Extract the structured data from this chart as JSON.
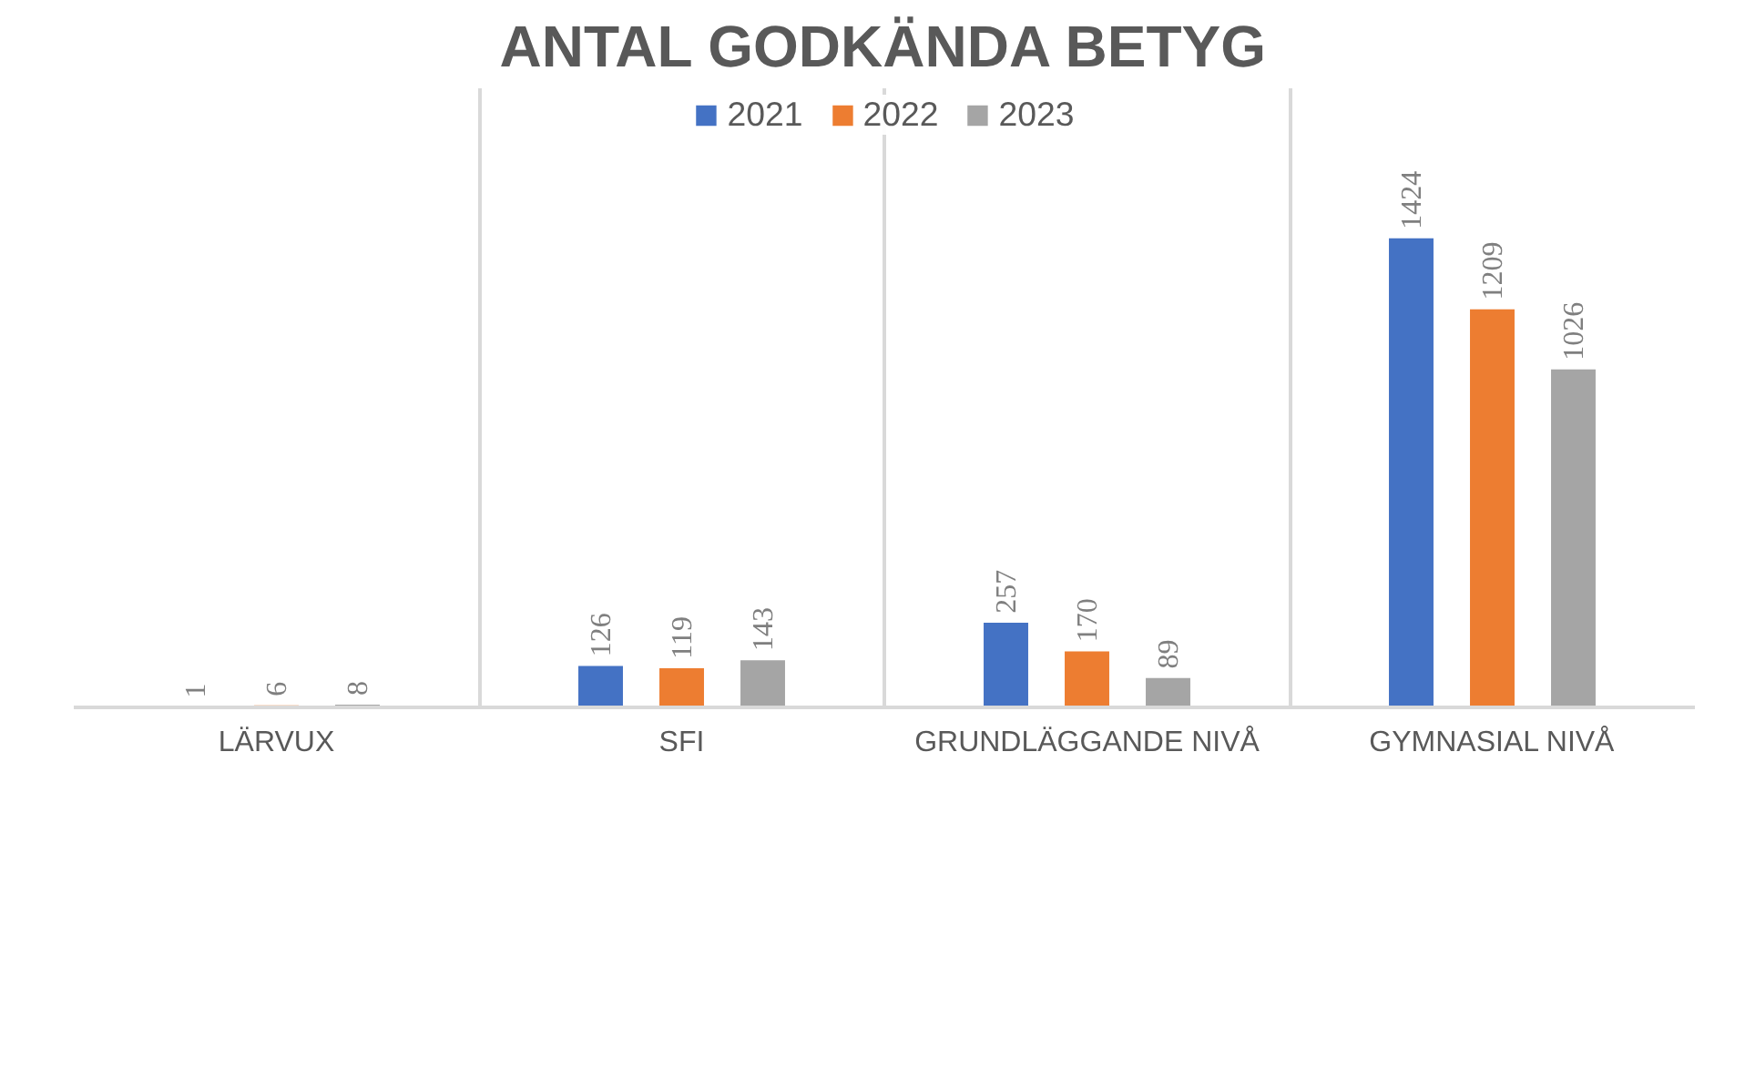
{
  "chart_data": {
    "type": "bar",
    "title": "ANTAL GODKÄNDA BETYG",
    "categories": [
      "LÄRVUX",
      "SFI",
      "GRUNDLÄGGANDE NIVÅ",
      "GYMNASIAL NIVÅ"
    ],
    "series": [
      {
        "name": "2021",
        "color": "#4472c4",
        "values": [
          1,
          126,
          257,
          1424
        ]
      },
      {
        "name": "2022",
        "color": "#ed7d31",
        "values": [
          6,
          119,
          170,
          1209
        ]
      },
      {
        "name": "2023",
        "color": "#a5a5a5",
        "values": [
          8,
          143,
          89,
          1026
        ]
      }
    ],
    "data_labels": true,
    "legend": "top",
    "grid": "x",
    "tick_labels": "x"
  }
}
